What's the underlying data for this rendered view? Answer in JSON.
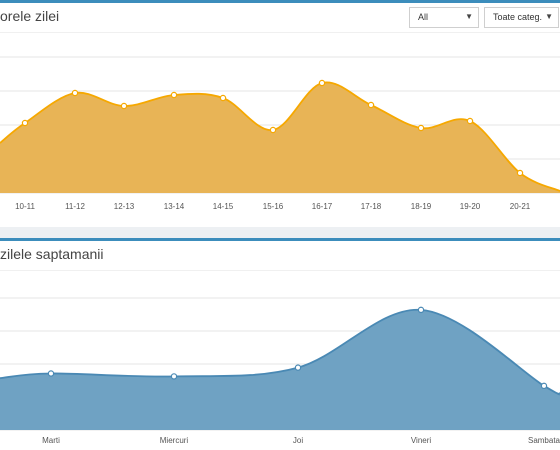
{
  "hours_panel": {
    "title": "orele zilei",
    "filter_selected": "All",
    "category_selected": "Toate categ."
  },
  "days_panel": {
    "title": "zilele saptamanii"
  },
  "colors": {
    "hours_fill": "#e8b456",
    "hours_line": "#f6a800",
    "days_fill": "#6fa2c3",
    "days_line": "#4a89b4",
    "panel_accent": "#3c8dbc"
  },
  "icons": {
    "select_arrow": "caret-down-icon"
  },
  "chart_data": [
    {
      "type": "area",
      "title": "",
      "categories": [
        "10-11",
        "11-12",
        "12-13",
        "13-14",
        "14-15",
        "15-16",
        "16-17",
        "17-18",
        "18-19",
        "19-20",
        "20-21"
      ],
      "series": [
        {
          "values": [
            0.7,
            1.0,
            0.87,
            0.98,
            0.95,
            0.63,
            1.1,
            0.88,
            0.65,
            0.72,
            0.2
          ]
        }
      ],
      "leading_edge_value": 0.5,
      "trailing_edge_value": 0.02,
      "ylim": [
        0,
        1.6
      ],
      "grid": true
    },
    {
      "type": "area",
      "title": "",
      "categories": [
        "Marti",
        "Miercuri",
        "Joi",
        "Vineri",
        "Sambata"
      ],
      "series": [
        {
          "values": [
            0.96,
            0.91,
            1.06,
            2.04,
            0.75
          ]
        }
      ],
      "leading_edge_value": 0.88,
      "trailing_edge_value": 0.62,
      "ylim": [
        0,
        2.7
      ],
      "grid": true
    }
  ]
}
